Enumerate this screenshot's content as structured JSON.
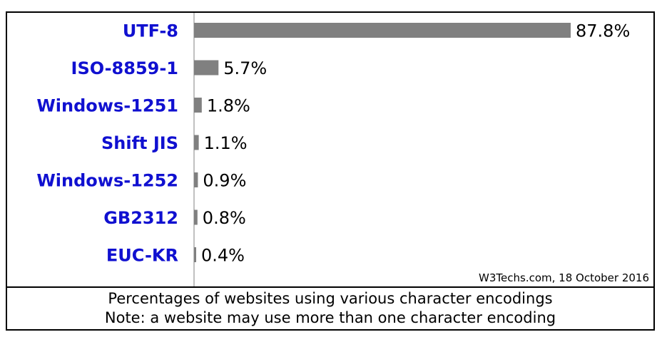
{
  "chart_data": {
    "type": "bar",
    "orientation": "horizontal",
    "categories": [
      "UTF-8",
      "ISO-8859-1",
      "Windows-1251",
      "Shift JIS",
      "Windows-1252",
      "GB2312",
      "EUC-KR"
    ],
    "values": [
      87.8,
      5.7,
      1.8,
      1.1,
      0.9,
      0.8,
      0.4
    ],
    "value_labels": [
      "87.8%",
      "5.7%",
      "1.8%",
      "1.1%",
      "0.9%",
      "0.8%",
      "0.4%"
    ],
    "xlim": [
      0,
      87.8
    ],
    "grid": false,
    "bar_color": "#808080",
    "label_color": "#1010d0",
    "source": "W3Techs.com, 18 October 2016"
  },
  "caption": {
    "line1": "Percentages of websites using various character encodings",
    "line2": "Note: a website may use more than one character encoding"
  }
}
